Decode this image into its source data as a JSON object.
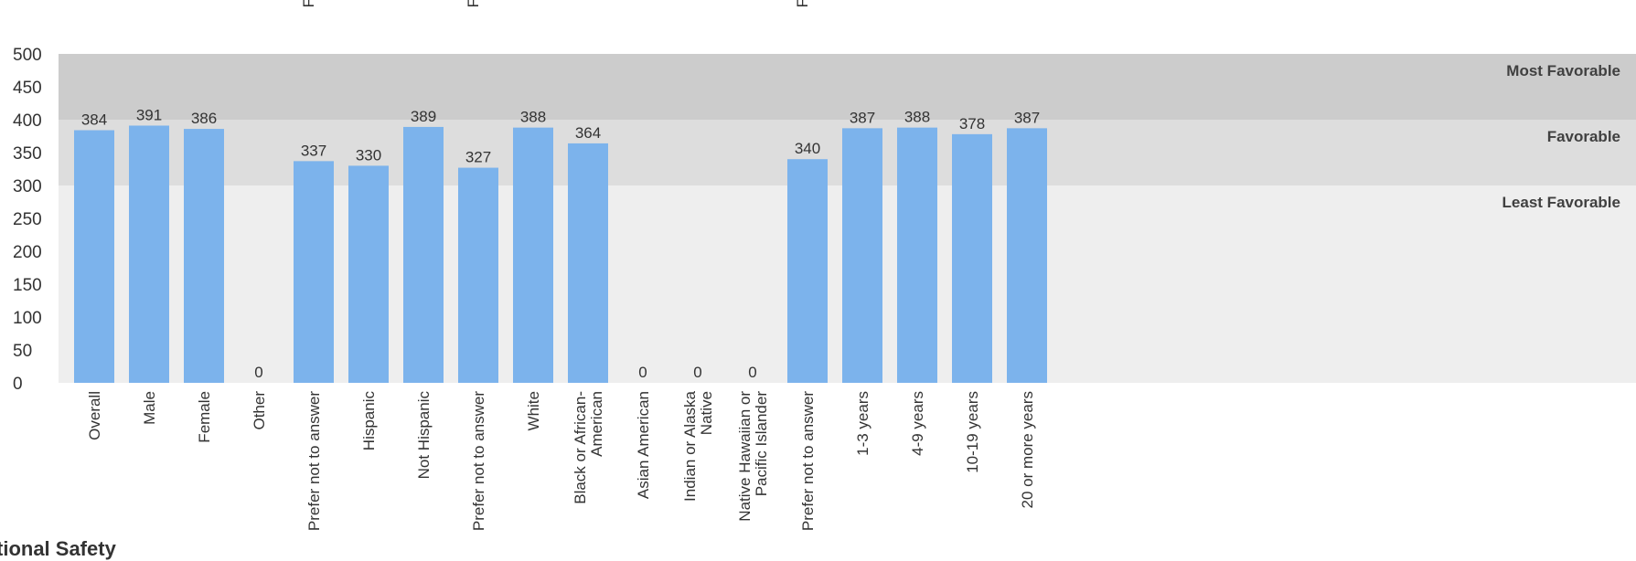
{
  "section_title": "tional Safety",
  "chart_data": {
    "type": "bar",
    "ylim": [
      0,
      500
    ],
    "yticks": [
      0,
      50,
      100,
      150,
      200,
      250,
      300,
      350,
      400,
      450,
      500
    ],
    "grid": false,
    "bands": [
      {
        "label": "Least Favorable",
        "from": 0,
        "to": 300,
        "color": "#eeeeee"
      },
      {
        "label": "Favorable",
        "from": 300,
        "to": 400,
        "color": "#dddddd"
      },
      {
        "label": "Most Favorable",
        "from": 400,
        "to": 500,
        "color": "#cccccc"
      }
    ],
    "bar_color": "#7cb3ec",
    "categories": [
      "Overall",
      "Male",
      "Female",
      "Other",
      "Prefer not to answer",
      "Hispanic",
      "Not Hispanic",
      "Prefer not to answer",
      "White",
      "Black or African-American",
      "Asian American",
      "Indian or Alaska Native",
      "Native Hawaiian or Pacific Islander",
      "Prefer not to answer",
      "1-3 years",
      "4-9 years",
      "10-19 years",
      "20 or more years"
    ],
    "category_lines": [
      [
        "Overall"
      ],
      [
        "Male"
      ],
      [
        "Female"
      ],
      [
        "Other"
      ],
      [
        "Prefer not to answer"
      ],
      [
        "Hispanic"
      ],
      [
        "Not Hispanic"
      ],
      [
        "Prefer not to answer"
      ],
      [
        "White"
      ],
      [
        "Black or African-",
        "American"
      ],
      [
        "Asian American"
      ],
      [
        "Indian or Alaska",
        "Native"
      ],
      [
        "Native Hawaiian or",
        "Pacific Islander"
      ],
      [
        "Prefer not to answer"
      ],
      [
        "1-3 years"
      ],
      [
        "4-9 years"
      ],
      [
        "10-19 years"
      ],
      [
        "20 or more years"
      ]
    ],
    "values": [
      384,
      391,
      386,
      0,
      337,
      330,
      389,
      327,
      388,
      364,
      0,
      0,
      0,
      340,
      387,
      388,
      378,
      387
    ],
    "top_fragments": [
      "F",
      "F",
      "F"
    ]
  }
}
